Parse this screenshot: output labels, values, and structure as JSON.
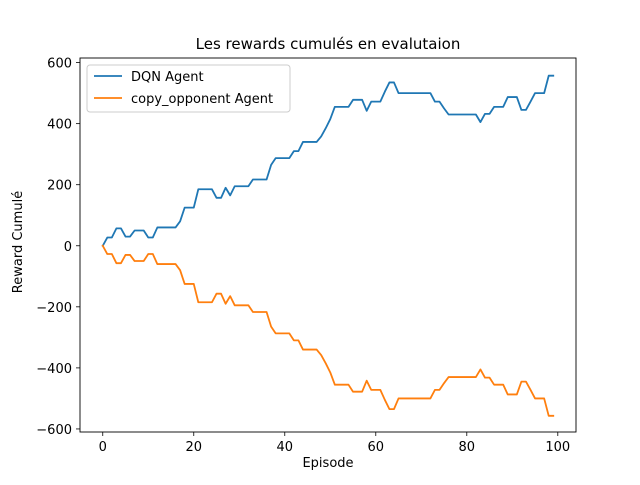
{
  "chart_data": {
    "type": "line",
    "title": "Les rewards cumulés en evalutaion",
    "xlabel": "Episode",
    "ylabel": "Reward Cumulé",
    "xlim": [
      -5,
      104
    ],
    "ylim": [
      -610,
      615
    ],
    "xticks": [
      0,
      20,
      40,
      60,
      80,
      100
    ],
    "xtick_labels": [
      "0",
      "20",
      "40",
      "60",
      "80",
      "100"
    ],
    "yticks": [
      -600,
      -400,
      -200,
      0,
      200,
      400,
      600
    ],
    "ytick_labels": [
      "−600",
      "−400",
      "−200",
      "0",
      "200",
      "400",
      "600"
    ],
    "grid": false,
    "legend_position": "top-left",
    "x": [
      0,
      1,
      2,
      3,
      4,
      5,
      6,
      7,
      8,
      9,
      10,
      11,
      12,
      13,
      14,
      15,
      16,
      17,
      18,
      19,
      20,
      21,
      22,
      23,
      24,
      25,
      26,
      27,
      28,
      29,
      30,
      31,
      32,
      33,
      34,
      35,
      36,
      37,
      38,
      39,
      40,
      41,
      42,
      43,
      44,
      45,
      46,
      47,
      48,
      49,
      50,
      51,
      52,
      53,
      54,
      55,
      56,
      57,
      58,
      59,
      60,
      61,
      62,
      63,
      64,
      65,
      66,
      67,
      68,
      69,
      70,
      71,
      72,
      73,
      74,
      75,
      76,
      77,
      78,
      79,
      80,
      81,
      82,
      83,
      84,
      85,
      86,
      87,
      88,
      89,
      90,
      91,
      92,
      93,
      94,
      95,
      96,
      97,
      98,
      99
    ],
    "series": [
      {
        "name": "DQN Agent",
        "color": "#1f77b4",
        "values": [
          0,
          27,
          27,
          57,
          57,
          30,
          30,
          50,
          50,
          50,
          27,
          27,
          60,
          60,
          60,
          60,
          60,
          80,
          125,
          125,
          125,
          185,
          185,
          185,
          185,
          157,
          157,
          190,
          165,
          195,
          195,
          195,
          195,
          217,
          217,
          217,
          217,
          265,
          287,
          287,
          287,
          287,
          310,
          310,
          340,
          340,
          340,
          340,
          358,
          385,
          415,
          455,
          455,
          455,
          455,
          478,
          478,
          478,
          442,
          472,
          472,
          472,
          505,
          535,
          535,
          500,
          500,
          500,
          500,
          500,
          500,
          500,
          500,
          472,
          472,
          450,
          430,
          430,
          430,
          430,
          430,
          430,
          430,
          405,
          432,
          432,
          455,
          455,
          455,
          487,
          487,
          487,
          445,
          445,
          472,
          500,
          500,
          500,
          557,
          557
        ]
      },
      {
        "name": "copy_opponent Agent",
        "color": "#ff7f0e",
        "values": [
          0,
          -27,
          -27,
          -57,
          -57,
          -30,
          -30,
          -50,
          -50,
          -50,
          -27,
          -27,
          -60,
          -60,
          -60,
          -60,
          -60,
          -80,
          -125,
          -125,
          -125,
          -185,
          -185,
          -185,
          -185,
          -157,
          -157,
          -190,
          -165,
          -195,
          -195,
          -195,
          -195,
          -217,
          -217,
          -217,
          -217,
          -265,
          -287,
          -287,
          -287,
          -287,
          -310,
          -310,
          -340,
          -340,
          -340,
          -340,
          -358,
          -385,
          -415,
          -455,
          -455,
          -455,
          -455,
          -478,
          -478,
          -478,
          -442,
          -472,
          -472,
          -472,
          -505,
          -535,
          -535,
          -500,
          -500,
          -500,
          -500,
          -500,
          -500,
          -500,
          -500,
          -472,
          -472,
          -450,
          -430,
          -430,
          -430,
          -430,
          -430,
          -430,
          -430,
          -405,
          -432,
          -432,
          -455,
          -455,
          -455,
          -487,
          -487,
          -487,
          -445,
          -445,
          -472,
          -500,
          -500,
          -500,
          -557,
          -557
        ]
      }
    ]
  }
}
